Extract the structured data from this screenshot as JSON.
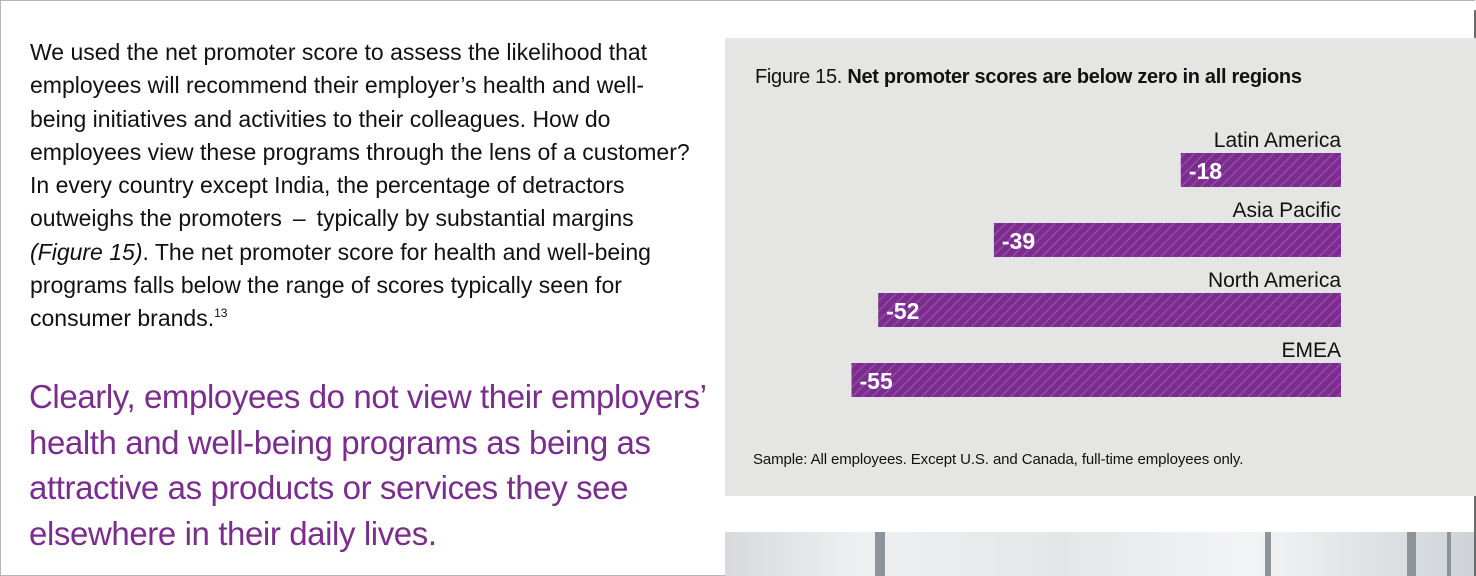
{
  "body_text": {
    "before_ref": "We used the net promoter score to assess the likelihood that employees will recommend their employer’s health and well-being initiatives and activities to their colleagues. How do employees view these programs through the lens of a customer? In every country except India, the percentage of detractors outweighs the promoters  –  typically by substantial margins ",
    "ref": "(Figure 15)",
    "after_ref": ". The net promoter score for health and well-being programs falls below the range of scores typically seen for consumer brands.",
    "footnote": "13"
  },
  "pull_quote": "Clearly, employees do not view their employers’ health and well-being programs as being as attractive as products or services they see elsewhere in their daily lives.",
  "figure": {
    "label": "Figure 15.",
    "title": "Net promoter scores are below zero in all regions",
    "sample_note": "Sample: All employees. Except U.S. and Canada, full-time employees only."
  },
  "chart_data": {
    "type": "bar",
    "orientation": "horizontal",
    "categories": [
      "Latin America",
      "Asia Pacific",
      "North America",
      "EMEA"
    ],
    "values": [
      -18,
      -39,
      -52,
      -55
    ],
    "value_labels": [
      "-18",
      "-39",
      "-52",
      "-55"
    ],
    "bar_color": "#7b2d8e",
    "bar_pattern": "diagonal-hatch"
  },
  "colors": {
    "accent_purple": "#7b2d8e",
    "panel_gray": "#e5e5e3"
  }
}
